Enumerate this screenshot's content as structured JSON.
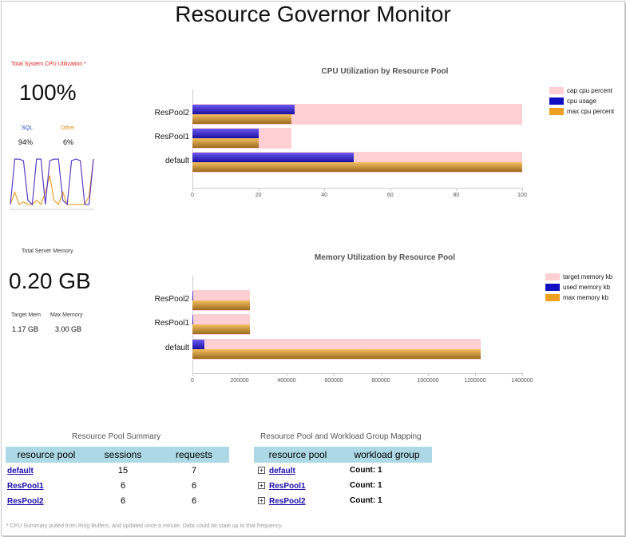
{
  "page_title": "Resource Governor Monitor",
  "cpu_panel": {
    "label": "Total System CPU Utilization *",
    "value": "100%",
    "sql_label": "SQL",
    "other_label": "Other",
    "sql_value": "94%",
    "other_value": "6%"
  },
  "mem_panel": {
    "label": "Total Server Memory",
    "value": "0.20 GB",
    "target_label": "Target Mem",
    "max_label": "Max Memory",
    "target_value": "1.17 GB",
    "max_value": "3.00 GB"
  },
  "colors": {
    "cap": "#ffcfd4",
    "usage_top": "#6a5af0",
    "usage_bottom": "#1a0fa0",
    "max_top": "#f6c060",
    "max_bottom": "#9a6a20",
    "sql_line": "#5a3cc0",
    "other_line": "#f0a030"
  },
  "chart_data": [
    {
      "type": "bar",
      "title": "CPU Utilization by Resource Pool",
      "categories": [
        "ResPool2",
        "ResPool1",
        "default"
      ],
      "series": [
        {
          "name": "cap cpu percent",
          "values": [
            100,
            30,
            100
          ]
        },
        {
          "name": "cpu usage",
          "values": [
            31,
            20,
            49
          ]
        },
        {
          "name": "max cpu percent",
          "values": [
            30,
            20,
            100
          ]
        }
      ],
      "xlim": [
        0,
        100
      ],
      "xticks": [
        "0",
        "20",
        "40",
        "60",
        "80",
        "100"
      ]
    },
    {
      "type": "bar",
      "title": "Memory Utilization by Resource Pool",
      "categories": [
        "ResPool2",
        "ResPool1",
        "default"
      ],
      "series": [
        {
          "name": "target memory kb",
          "values": [
            245000,
            245000,
            1225000
          ]
        },
        {
          "name": "used memory kb",
          "values": [
            3000,
            3000,
            50000
          ]
        },
        {
          "name": "max memory kb",
          "values": [
            245000,
            245000,
            1225000
          ]
        }
      ],
      "xlim": [
        0,
        1400000
      ],
      "xticks": [
        "0",
        "200000",
        "400000",
        "600000",
        "800000",
        "1000000",
        "1200000",
        "1400000"
      ]
    }
  ],
  "sparkline": {
    "sql": [
      5,
      60,
      60,
      58,
      10,
      5,
      60,
      60,
      5,
      58,
      60,
      60,
      10,
      5,
      58,
      60,
      58,
      5,
      5,
      60
    ],
    "other": [
      5,
      20,
      5,
      8,
      5,
      5,
      10,
      5,
      20,
      40,
      10,
      5,
      20,
      5,
      5,
      5,
      5,
      5,
      15,
      60
    ]
  },
  "summary": {
    "title": "Resource Pool Summary",
    "headers": [
      "resource pool",
      "sessions",
      "requests"
    ],
    "rows": [
      {
        "pool": "default",
        "sessions": "15",
        "requests": "7"
      },
      {
        "pool": "ResPool1",
        "sessions": "6",
        "requests": "6"
      },
      {
        "pool": "ResPool2",
        "sessions": "6",
        "requests": "6"
      }
    ]
  },
  "mapping": {
    "title": "Resource Pool and Workload Group Mapping",
    "headers": [
      "resource pool",
      "workload group"
    ],
    "rows": [
      {
        "pool": "default",
        "count": "Count: 1"
      },
      {
        "pool": "ResPool1",
        "count": "Count: 1"
      },
      {
        "pool": "ResPool2",
        "count": "Count: 1"
      }
    ]
  },
  "footnote": "* CPU Summary pulled from Ring Buffers, and updated once a minute.  Data could be stale up to that frequency."
}
